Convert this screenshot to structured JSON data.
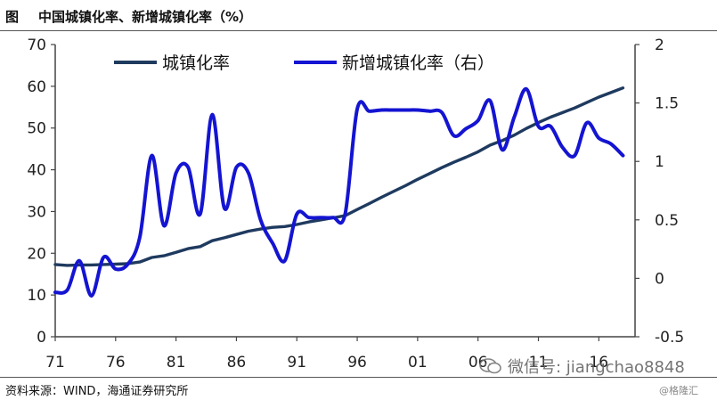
{
  "figure": {
    "prefix": "图",
    "title": "中国城镇化率、新增城镇化率（%）"
  },
  "source": "资料来源：WIND，海通证券研究所",
  "watermark": {
    "icon": "wechat-icon",
    "text": "微信号: jiangchao8848"
  },
  "credit": "@格隆汇",
  "colors": {
    "urbanization": "#1f3a5f",
    "new_urbanization": "#1414d2",
    "axis": "#444444"
  },
  "chart_data": {
    "type": "line",
    "title": "中国城镇化率、新增城镇化率（%）",
    "xlim": [
      1971,
      2019
    ],
    "x_ticks": [
      {
        "value": 1971,
        "label": "71"
      },
      {
        "value": 1976,
        "label": "76"
      },
      {
        "value": 1981,
        "label": "81"
      },
      {
        "value": 1986,
        "label": "86"
      },
      {
        "value": 1991,
        "label": "91"
      },
      {
        "value": 1996,
        "label": "96"
      },
      {
        "value": 2001,
        "label": "01"
      },
      {
        "value": 2006,
        "label": "06"
      },
      {
        "value": 2011,
        "label": "11"
      },
      {
        "value": 2016,
        "label": "16"
      }
    ],
    "y_left": {
      "lim": [
        0,
        70
      ],
      "ticks": [
        "0",
        "10",
        "20",
        "30",
        "40",
        "50",
        "60",
        "70"
      ]
    },
    "y_right": {
      "lim": [
        -0.5,
        2
      ],
      "ticks": [
        "-0.5",
        "0",
        "0.5",
        "1",
        "1.5",
        "2"
      ]
    },
    "legend_position": "top",
    "series": [
      {
        "name": "城镇化率",
        "axis": "left",
        "x": [
          1971,
          1972,
          1973,
          1974,
          1975,
          1976,
          1977,
          1978,
          1979,
          1980,
          1981,
          1982,
          1983,
          1984,
          1985,
          1986,
          1987,
          1988,
          1989,
          1990,
          1991,
          1992,
          1993,
          1994,
          1995,
          1996,
          1997,
          1998,
          1999,
          2000,
          2001,
          2002,
          2003,
          2004,
          2005,
          2006,
          2007,
          2008,
          2009,
          2010,
          2011,
          2012,
          2013,
          2014,
          2015,
          2016,
          2017,
          2018
        ],
        "values": [
          17.3,
          17.1,
          17.2,
          17.2,
          17.3,
          17.4,
          17.5,
          17.9,
          19.0,
          19.4,
          20.2,
          21.1,
          21.6,
          23.0,
          23.7,
          24.5,
          25.3,
          25.8,
          26.2,
          26.4,
          26.9,
          27.5,
          28.0,
          28.5,
          29.0,
          30.5,
          31.9,
          33.4,
          34.8,
          36.2,
          37.7,
          39.1,
          40.5,
          41.8,
          43.0,
          44.3,
          45.9,
          47.0,
          48.3,
          49.9,
          51.3,
          52.6,
          53.7,
          54.8,
          56.1,
          57.4,
          58.5,
          59.6
        ]
      },
      {
        "name": "新增城镇化率（右）",
        "axis": "right",
        "x": [
          1971,
          1972,
          1973,
          1974,
          1975,
          1976,
          1977,
          1978,
          1979,
          1980,
          1981,
          1982,
          1983,
          1984,
          1985,
          1986,
          1987,
          1988,
          1989,
          1990,
          1991,
          1992,
          1993,
          1994,
          1995,
          1996,
          1997,
          1998,
          1999,
          2000,
          2001,
          2002,
          2003,
          2004,
          2005,
          2006,
          2007,
          2008,
          2009,
          2010,
          2011,
          2012,
          2013,
          2014,
          2015,
          2016,
          2017,
          2018
        ],
        "values": [
          -0.12,
          -0.1,
          0.15,
          -0.15,
          0.18,
          0.08,
          0.12,
          0.35,
          1.05,
          0.45,
          0.9,
          0.95,
          0.55,
          1.4,
          0.6,
          0.95,
          0.9,
          0.5,
          0.3,
          0.15,
          0.55,
          0.52,
          0.52,
          0.52,
          0.55,
          1.45,
          1.43,
          1.44,
          1.44,
          1.44,
          1.44,
          1.43,
          1.42,
          1.22,
          1.28,
          1.35,
          1.52,
          1.1,
          1.38,
          1.62,
          1.3,
          1.3,
          1.12,
          1.05,
          1.33,
          1.2,
          1.15,
          1.05
        ]
      }
    ]
  }
}
